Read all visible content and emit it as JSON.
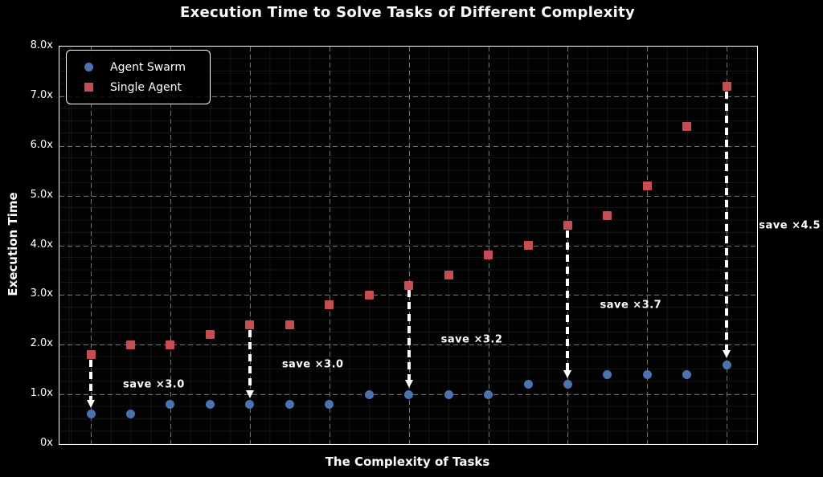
{
  "chart_data": {
    "type": "scatter",
    "title": "Execution Time to Solve Tasks of Different Complexity",
    "xlabel": "The Complexity of Tasks",
    "ylabel": "Execution Time",
    "ylim": [
      0,
      8
    ],
    "ytick_labels": [
      "0x",
      "1.0x",
      "2.0x",
      "3.0x",
      "4.0x",
      "5.0x",
      "6.0x",
      "7.0x",
      "8.0x"
    ],
    "x": [
      1,
      2,
      3,
      4,
      5,
      6,
      7,
      8,
      9,
      10,
      11,
      12,
      13,
      14,
      15,
      16,
      17
    ],
    "series": [
      {
        "name": "Agent Swarm",
        "marker": "circle",
        "color": "#4C72B0",
        "values": [
          0.6,
          0.6,
          0.8,
          0.8,
          0.8,
          0.8,
          0.8,
          1.0,
          1.0,
          1.0,
          1.0,
          1.2,
          1.2,
          1.4,
          1.4,
          1.4,
          1.6
        ]
      },
      {
        "name": "Single Agent",
        "marker": "square",
        "color": "#C44E52",
        "values": [
          1.8,
          2.0,
          2.0,
          2.2,
          2.4,
          2.4,
          2.8,
          3.0,
          3.2,
          3.4,
          3.8,
          4.0,
          4.4,
          4.6,
          5.2,
          6.4,
          7.2
        ]
      }
    ],
    "annotations": [
      {
        "point_index": 0,
        "label": "save ×3.0"
      },
      {
        "point_index": 4,
        "label": "save ×3.0"
      },
      {
        "point_index": 8,
        "label": "save ×3.2"
      },
      {
        "point_index": 12,
        "label": "save ×3.7"
      },
      {
        "point_index": 16,
        "label": "save ×4.5"
      }
    ],
    "legend_position": "upper-left",
    "grid": true,
    "colors": {
      "background": "#000000",
      "spine": "#ffffff",
      "grid_major": "#6f6f6f",
      "text": "#ffffff",
      "arrow": "#ffffff"
    }
  }
}
